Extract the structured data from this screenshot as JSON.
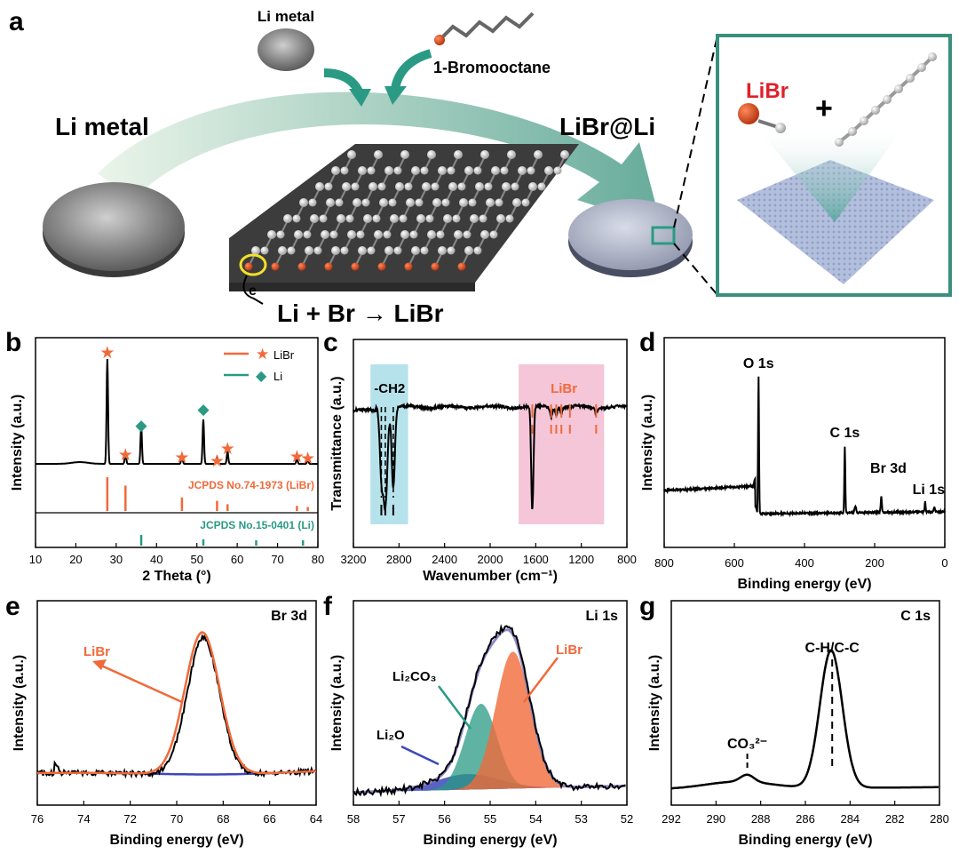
{
  "colors": {
    "orange": "#f06a3a",
    "teal": "#2a9a84",
    "pink": "#f4c6d8",
    "cyan": "#b6e2ec",
    "frame_teal": "#3a8f7e",
    "blue": "#3d47b8",
    "purple_blue": "#8e88c8"
  },
  "panel_a": {
    "label": "a",
    "li_metal_small": "Li metal",
    "bromooctane": "1-Bromooctane",
    "li_metal_big": "Li metal",
    "libr_at_li": "LiBr@Li",
    "inset_libr": "LiBr",
    "inset_plus": "+",
    "electron": "e",
    "reaction": "Li + Br → LiBr"
  },
  "chart_data": [
    {
      "panel": "b",
      "type": "line",
      "xlabel": "2 Theta (°)",
      "ylabel": "Intensity (a.u.)",
      "xlim": [
        10,
        80
      ],
      "xticks": [
        10,
        20,
        30,
        40,
        50,
        60,
        70,
        80
      ],
      "legend": [
        {
          "name": "LiBr",
          "marker": "star",
          "color": "#f06a3a"
        },
        {
          "name": "Li",
          "marker": "diamond",
          "color": "#2a9a84"
        }
      ],
      "libr_peaks": [
        27.8,
        32.3,
        46.3,
        55.0,
        57.6,
        74.8,
        77.5
      ],
      "li_peaks": [
        36.2,
        51.6
      ],
      "ref_libr_label": "JCPDS No.74-1973 (LiBr)",
      "ref_libr_sticks": [
        27.8,
        32.3,
        46.3,
        55.0,
        57.6,
        74.8,
        77.5
      ],
      "ref_libr_heights": [
        1.0,
        0.75,
        0.4,
        0.3,
        0.2,
        0.15,
        0.12
      ],
      "ref_li_label": "JCPDS No.15-0401 (Li)",
      "ref_li_sticks": [
        36.2,
        51.6,
        64.7,
        76.3
      ],
      "ref_li_heights": [
        0.5,
        0.3,
        0.25,
        0.25
      ]
    },
    {
      "panel": "c",
      "type": "line",
      "xlabel": "Wavenumber (cm⁻¹)",
      "ylabel": "Transmittance (a.u.)",
      "xlim": [
        3200,
        800
      ],
      "xticks": [
        3200,
        2800,
        2400,
        2000,
        1600,
        1200,
        800
      ],
      "regions": [
        {
          "label": "-CH2",
          "from": 3050,
          "to": 2720
        },
        {
          "label": "LiBr",
          "from": 1750,
          "to": 1000
        }
      ],
      "ch2_bands": [
        2955,
        2920,
        2850
      ],
      "libr_bands": [
        1630,
        1465,
        1420,
        1375,
        1300,
        1070
      ]
    },
    {
      "panel": "d",
      "type": "line",
      "xlabel": "Binding energy (eV)",
      "ylabel": "Intensity (a.u.)",
      "xlim": [
        800,
        0
      ],
      "xticks": [
        800,
        600,
        400,
        200,
        0
      ],
      "peaks": [
        {
          "label": "O 1s",
          "x": 531
        },
        {
          "label": "C 1s",
          "x": 285
        },
        {
          "label": "Br 3d",
          "x": 181
        },
        {
          "label": "Li 1s",
          "x": 56
        }
      ]
    },
    {
      "panel": "e",
      "type": "line",
      "title": "Br 3d",
      "xlabel": "Binding energy (eV)",
      "ylabel": "Intensity (a.u.)",
      "xlim": [
        76,
        64
      ],
      "xticks": [
        76,
        74,
        72,
        70,
        68,
        66,
        64
      ],
      "series": [
        {
          "name": "LiBr",
          "center": 68.9,
          "fwhm": 1.6
        }
      ]
    },
    {
      "panel": "f",
      "type": "area",
      "title": "Li 1s",
      "xlabel": "Binding energy (eV)",
      "ylabel": "Intensity (a.u.)",
      "xlim": [
        58,
        52
      ],
      "xticks": [
        58,
        57,
        56,
        55,
        54,
        53,
        52
      ],
      "series": [
        {
          "name": "Li₂O",
          "center": 55.5,
          "height": 0.1
        },
        {
          "name": "Li₂CO₃",
          "center": 55.2,
          "height": 0.55
        },
        {
          "name": "LiBr",
          "center": 54.5,
          "height": 0.88
        }
      ]
    },
    {
      "panel": "g",
      "type": "line",
      "title": "C 1s",
      "xlabel": "Binding energy (eV)",
      "ylabel": "Intensity (a.u.)",
      "xlim": [
        292,
        280
      ],
      "xticks": [
        292,
        290,
        288,
        286,
        284,
        282,
        280
      ],
      "peaks": [
        {
          "label": "C-H/C-C",
          "x": 284.8
        },
        {
          "label": "CO₃²⁻",
          "x": 288.6
        }
      ]
    }
  ]
}
